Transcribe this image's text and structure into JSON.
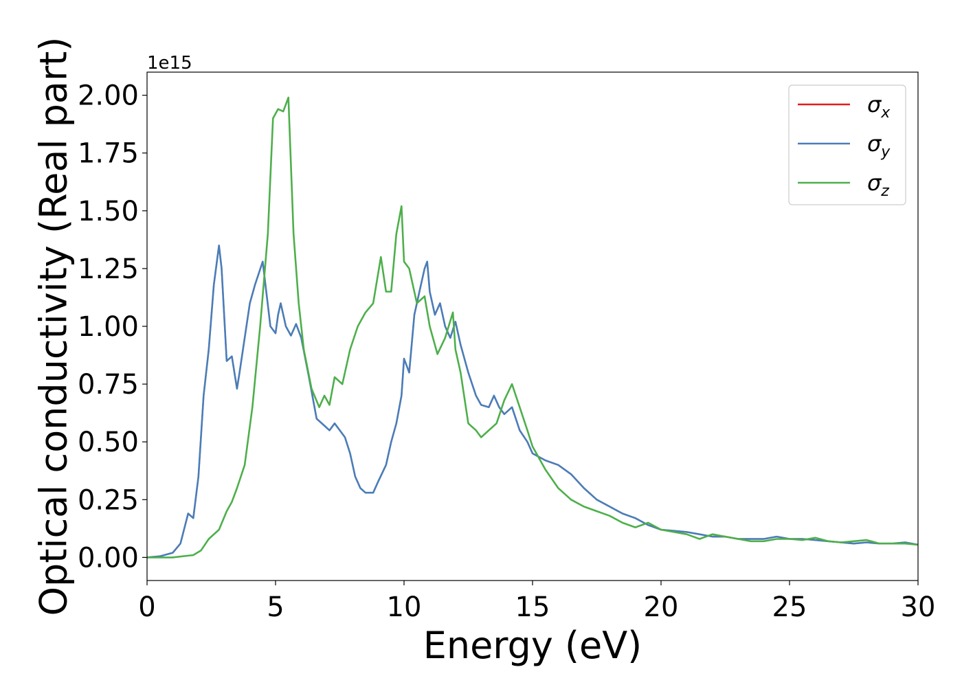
{
  "chart_data": {
    "type": "line",
    "xlabel": "Energy (eV)",
    "ylabel": "Optical conductivity (Real part)",
    "y_offset_label": "1e15",
    "xlim": [
      0,
      30
    ],
    "ylim": [
      -0.1,
      2.1
    ],
    "xticks": [
      0,
      5,
      10,
      15,
      20,
      25,
      30
    ],
    "xtick_labels": [
      "0",
      "5",
      "10",
      "15",
      "20",
      "25",
      "30"
    ],
    "yticks": [
      0.0,
      0.25,
      0.5,
      0.75,
      1.0,
      1.25,
      1.5,
      1.75,
      2.0
    ],
    "ytick_labels": [
      "0.00",
      "0.25",
      "0.50",
      "0.75",
      "1.00",
      "1.25",
      "1.50",
      "1.75",
      "2.00"
    ],
    "grid": false,
    "legend_position": "top-right",
    "series": [
      {
        "name": "σx",
        "name_main": "σ",
        "name_sub": "x",
        "color": "#e41a1c",
        "x": [
          0,
          0.5,
          1.0,
          1.3,
          1.6,
          1.8,
          2.0,
          2.2,
          2.4,
          2.6,
          2.8,
          2.9,
          3.1,
          3.3,
          3.5,
          3.6,
          3.8,
          4.0,
          4.2,
          4.5,
          4.8,
          5.0,
          5.1,
          5.2,
          5.4,
          5.6,
          5.8,
          6.0,
          6.3,
          6.6,
          6.9,
          7.1,
          7.3,
          7.5,
          7.7,
          7.9,
          8.1,
          8.3,
          8.5,
          8.8,
          9.0,
          9.3,
          9.5,
          9.7,
          9.9,
          10.0,
          10.2,
          10.4,
          10.6,
          10.8,
          10.9,
          11.0,
          11.2,
          11.4,
          11.6,
          11.8,
          12.0,
          12.2,
          12.5,
          12.8,
          13.0,
          13.3,
          13.5,
          13.7,
          13.9,
          14.2,
          14.5,
          14.8,
          15.0,
          15.5,
          16.0,
          16.5,
          17.0,
          17.5,
          18.0,
          18.5,
          19.0,
          19.5,
          20.0,
          20.5,
          21.0,
          21.5,
          22.0,
          22.5,
          23.0,
          23.5,
          24.0,
          24.5,
          25.0,
          25.5,
          26.0,
          26.5,
          27.0,
          27.5,
          28.0,
          28.5,
          29.0,
          29.5,
          30.0
        ],
        "values": [
          0.0,
          0.005,
          0.02,
          0.06,
          0.19,
          0.17,
          0.35,
          0.7,
          0.9,
          1.18,
          1.35,
          1.25,
          0.85,
          0.87,
          0.73,
          0.8,
          0.95,
          1.1,
          1.18,
          1.28,
          1.0,
          0.97,
          1.05,
          1.1,
          1.0,
          0.96,
          1.01,
          0.95,
          0.78,
          0.6,
          0.57,
          0.55,
          0.58,
          0.55,
          0.52,
          0.45,
          0.35,
          0.3,
          0.28,
          0.28,
          0.33,
          0.4,
          0.5,
          0.58,
          0.7,
          0.86,
          0.8,
          1.05,
          1.15,
          1.25,
          1.28,
          1.15,
          1.05,
          1.1,
          1.0,
          0.95,
          1.02,
          0.92,
          0.8,
          0.7,
          0.66,
          0.65,
          0.7,
          0.65,
          0.62,
          0.65,
          0.55,
          0.5,
          0.45,
          0.42,
          0.4,
          0.36,
          0.3,
          0.25,
          0.22,
          0.19,
          0.17,
          0.14,
          0.12,
          0.115,
          0.11,
          0.1,
          0.09,
          0.09,
          0.08,
          0.08,
          0.08,
          0.09,
          0.08,
          0.08,
          0.075,
          0.07,
          0.065,
          0.06,
          0.065,
          0.06,
          0.06,
          0.065,
          0.055
        ]
      },
      {
        "name": "σy",
        "name_main": "σ",
        "name_sub": "y",
        "color": "#4a7db8",
        "x": [
          0,
          0.5,
          1.0,
          1.3,
          1.6,
          1.8,
          2.0,
          2.2,
          2.4,
          2.6,
          2.8,
          2.9,
          3.1,
          3.3,
          3.5,
          3.6,
          3.8,
          4.0,
          4.2,
          4.5,
          4.8,
          5.0,
          5.1,
          5.2,
          5.4,
          5.6,
          5.8,
          6.0,
          6.3,
          6.6,
          6.9,
          7.1,
          7.3,
          7.5,
          7.7,
          7.9,
          8.1,
          8.3,
          8.5,
          8.8,
          9.0,
          9.3,
          9.5,
          9.7,
          9.9,
          10.0,
          10.2,
          10.4,
          10.6,
          10.8,
          10.9,
          11.0,
          11.2,
          11.4,
          11.6,
          11.8,
          12.0,
          12.2,
          12.5,
          12.8,
          13.0,
          13.3,
          13.5,
          13.7,
          13.9,
          14.2,
          14.5,
          14.8,
          15.0,
          15.5,
          16.0,
          16.5,
          17.0,
          17.5,
          18.0,
          18.5,
          19.0,
          19.5,
          20.0,
          20.5,
          21.0,
          21.5,
          22.0,
          22.5,
          23.0,
          23.5,
          24.0,
          24.5,
          25.0,
          25.5,
          26.0,
          26.5,
          27.0,
          27.5,
          28.0,
          28.5,
          29.0,
          29.5,
          30.0
        ],
        "values": [
          0.0,
          0.005,
          0.02,
          0.06,
          0.19,
          0.17,
          0.35,
          0.7,
          0.9,
          1.18,
          1.35,
          1.25,
          0.85,
          0.87,
          0.73,
          0.8,
          0.95,
          1.1,
          1.18,
          1.28,
          1.0,
          0.97,
          1.05,
          1.1,
          1.0,
          0.96,
          1.01,
          0.95,
          0.78,
          0.6,
          0.57,
          0.55,
          0.58,
          0.55,
          0.52,
          0.45,
          0.35,
          0.3,
          0.28,
          0.28,
          0.33,
          0.4,
          0.5,
          0.58,
          0.7,
          0.86,
          0.8,
          1.05,
          1.15,
          1.25,
          1.28,
          1.15,
          1.05,
          1.1,
          1.0,
          0.95,
          1.02,
          0.92,
          0.8,
          0.7,
          0.66,
          0.65,
          0.7,
          0.65,
          0.62,
          0.65,
          0.55,
          0.5,
          0.45,
          0.42,
          0.4,
          0.36,
          0.3,
          0.25,
          0.22,
          0.19,
          0.17,
          0.14,
          0.12,
          0.115,
          0.11,
          0.1,
          0.09,
          0.09,
          0.08,
          0.08,
          0.08,
          0.09,
          0.08,
          0.08,
          0.075,
          0.07,
          0.065,
          0.06,
          0.065,
          0.06,
          0.06,
          0.065,
          0.055
        ]
      },
      {
        "name": "σz",
        "name_main": "σ",
        "name_sub": "z",
        "color": "#4daf4a",
        "x": [
          0,
          1.0,
          1.8,
          2.1,
          2.4,
          2.8,
          3.1,
          3.3,
          3.5,
          3.8,
          4.1,
          4.4,
          4.7,
          4.9,
          5.1,
          5.3,
          5.5,
          5.7,
          5.9,
          6.1,
          6.4,
          6.7,
          6.9,
          7.1,
          7.3,
          7.6,
          7.9,
          8.2,
          8.5,
          8.8,
          9.1,
          9.3,
          9.5,
          9.7,
          9.9,
          10.0,
          10.2,
          10.5,
          10.8,
          11.0,
          11.3,
          11.6,
          11.9,
          12.0,
          12.2,
          12.5,
          12.8,
          13.0,
          13.3,
          13.6,
          13.9,
          14.2,
          14.5,
          14.8,
          15.0,
          15.5,
          16.0,
          16.5,
          17.0,
          17.5,
          18.0,
          18.5,
          19.0,
          19.5,
          20.0,
          20.5,
          21.0,
          21.5,
          22.0,
          22.5,
          23.0,
          23.5,
          24.0,
          24.5,
          25.0,
          25.5,
          26.0,
          26.5,
          27.0,
          27.5,
          28.0,
          28.5,
          29.0,
          29.5,
          30.0
        ],
        "values": [
          0.0,
          0.0,
          0.01,
          0.03,
          0.08,
          0.12,
          0.2,
          0.24,
          0.3,
          0.4,
          0.65,
          1.0,
          1.4,
          1.9,
          1.94,
          1.93,
          1.99,
          1.4,
          1.1,
          0.9,
          0.73,
          0.65,
          0.7,
          0.66,
          0.78,
          0.75,
          0.9,
          1.0,
          1.06,
          1.1,
          1.3,
          1.15,
          1.15,
          1.4,
          1.52,
          1.28,
          1.25,
          1.1,
          1.13,
          1.0,
          0.88,
          0.95,
          1.06,
          0.9,
          0.8,
          0.58,
          0.55,
          0.52,
          0.55,
          0.58,
          0.68,
          0.75,
          0.65,
          0.55,
          0.48,
          0.38,
          0.3,
          0.25,
          0.22,
          0.2,
          0.18,
          0.15,
          0.13,
          0.15,
          0.12,
          0.11,
          0.1,
          0.08,
          0.1,
          0.09,
          0.08,
          0.07,
          0.07,
          0.08,
          0.08,
          0.075,
          0.085,
          0.07,
          0.065,
          0.07,
          0.075,
          0.06,
          0.06,
          0.06,
          0.055
        ]
      }
    ]
  }
}
